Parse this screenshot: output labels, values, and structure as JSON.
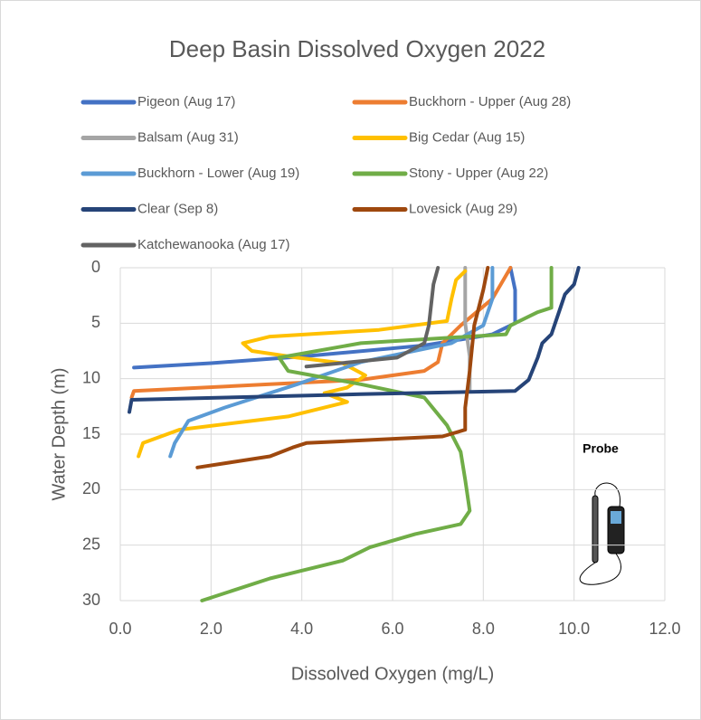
{
  "chart_data": {
    "type": "line",
    "title": "Deep Basin Dissolved Oxygen 2022",
    "x_label": "Dissolved Oxygen (mg/L)",
    "y_label": "Water Depth (m)",
    "annotation": "Probe",
    "xlim": [
      0,
      12
    ],
    "ylim": [
      0,
      30
    ],
    "y_inverted": true,
    "grid": true,
    "xticks": [
      {
        "value": 0,
        "label": "0.0"
      },
      {
        "value": 2,
        "label": "2.0"
      },
      {
        "value": 4,
        "label": "4.0"
      },
      {
        "value": 6,
        "label": "6.0"
      },
      {
        "value": 8,
        "label": "8.0"
      },
      {
        "value": 10,
        "label": "10.0"
      },
      {
        "value": 12,
        "label": "12.0"
      }
    ],
    "yticks": [
      0,
      5,
      10,
      15,
      20,
      25,
      30
    ],
    "series": [
      {
        "name": "Pigeon (Aug 17)",
        "color": "#4472c4",
        "x": [
          8.6,
          8.7,
          8.7,
          8.2,
          6.7,
          4.0,
          2.0,
          0.3
        ],
        "values": [
          0,
          2,
          5,
          6,
          7,
          8,
          8.6,
          9
        ]
      },
      {
        "name": "Buckhorn - Upper (Aug 28)",
        "color": "#ed7d31",
        "x": [
          8.6,
          8.2,
          7.5,
          7.1,
          7.0,
          6.7,
          5.3,
          3.3,
          0.3,
          0.25
        ],
        "values": [
          0,
          2.8,
          5.2,
          6.8,
          8.5,
          9.3,
          10.1,
          10.5,
          11.1,
          11.7
        ]
      },
      {
        "name": "Balsam (Aug 31)",
        "color": "#a5a5a5",
        "x": [
          7.6,
          7.6,
          7.7,
          7.7
        ],
        "values": [
          0,
          5,
          8,
          11
        ]
      },
      {
        "name": "Big Cedar (Aug 15)",
        "color": "#ffc000",
        "x": [
          7.6,
          7.4,
          7.3,
          7.2,
          5.7,
          3.3,
          2.7,
          2.9,
          3.9,
          4.9,
          5.4,
          5.0,
          4.5,
          5.0,
          3.7,
          1.3,
          0.5,
          0.4
        ],
        "values": [
          0.3,
          1.1,
          2.8,
          4.8,
          5.6,
          6.2,
          6.8,
          7.5,
          8.1,
          8.6,
          9.7,
          10.8,
          11.3,
          12.1,
          13.4,
          14.6,
          15.8,
          17
        ]
      },
      {
        "name": "Buckhorn - Lower (Aug 19)",
        "color": "#5b9bd5",
        "x": [
          8.2,
          8.2,
          8.0,
          7.3,
          5.3,
          3.9,
          2.3,
          1.5,
          1.2,
          1.1
        ],
        "values": [
          0,
          2.8,
          5.2,
          6.8,
          8.5,
          10.5,
          12.6,
          13.8,
          15.8,
          17
        ]
      },
      {
        "name": "Stony - Upper (Aug 22)",
        "color": "#70ad47",
        "x": [
          9.5,
          9.5,
          9.2,
          8.6,
          8.5,
          5.3,
          3.5,
          3.7,
          5.3,
          6.7,
          7.2,
          7.5,
          7.6,
          7.7,
          7.5,
          6.5,
          5.5,
          4.9,
          3.3,
          1.8
        ],
        "values": [
          0,
          3.6,
          4,
          5.2,
          6,
          6.8,
          8.1,
          9.3,
          10.5,
          11.7,
          14.2,
          16.6,
          19.1,
          21.9,
          23.1,
          24,
          25.2,
          26.4,
          28,
          30
        ]
      },
      {
        "name": "Clear (Sep 8)",
        "color": "#264478",
        "x": [
          10.1,
          10.0,
          9.8,
          9.7,
          9.5,
          9.3,
          9.2,
          9.0,
          8.7,
          5.3,
          0.25,
          0.2
        ],
        "values": [
          0,
          1.5,
          2.4,
          3.6,
          6,
          6.8,
          8.1,
          10.1,
          11.1,
          11.4,
          11.9,
          13
        ]
      },
      {
        "name": "Lovesick (Aug 29)",
        "color": "#9e480e",
        "x": [
          8.1,
          8.0,
          7.8,
          7.7,
          7.6,
          7.6,
          7.1,
          4.1,
          3.8,
          3.3,
          1.7
        ],
        "values": [
          0,
          2,
          5.2,
          9.3,
          12.6,
          14.6,
          15.2,
          15.8,
          16.2,
          17,
          18
        ]
      },
      {
        "name": "Katchewanooka (Aug 17)",
        "color": "#636363",
        "x": [
          7.0,
          6.9,
          6.8,
          6.7,
          6.1,
          4.1
        ],
        "values": [
          0,
          1.5,
          5.2,
          6.8,
          8.1,
          8.9
        ]
      }
    ]
  }
}
